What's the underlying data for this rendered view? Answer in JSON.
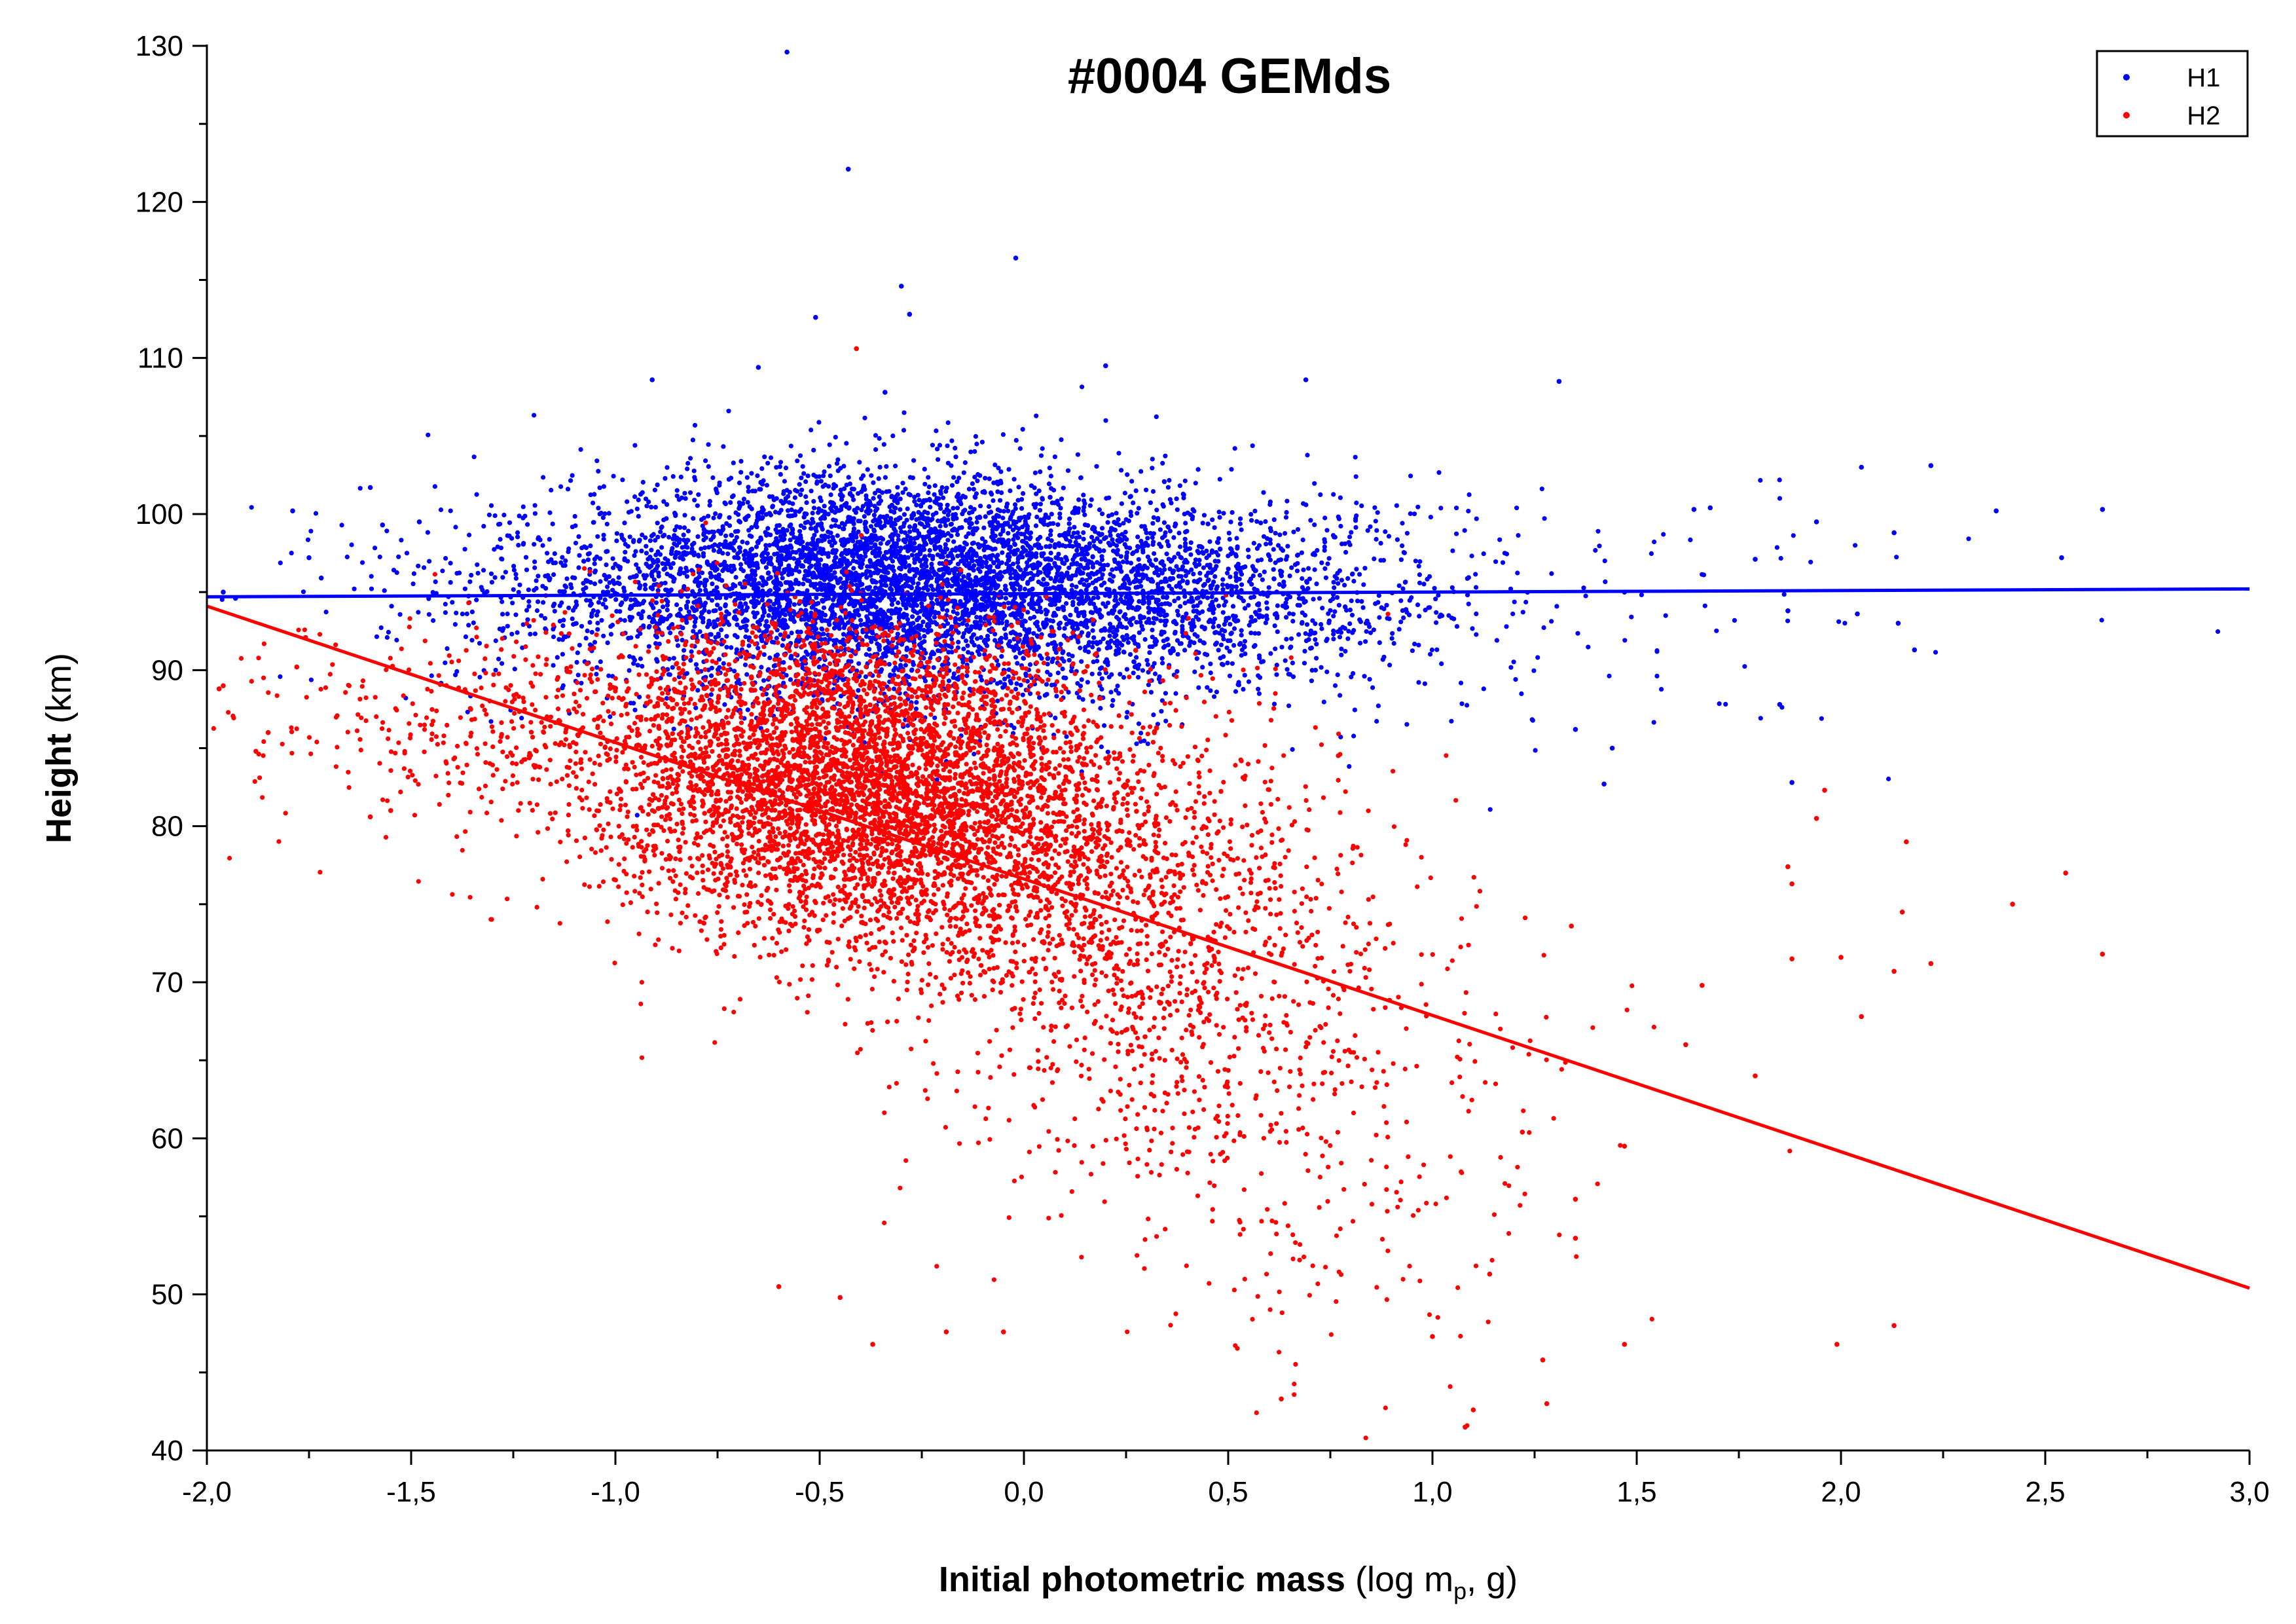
{
  "chart_data": {
    "type": "scatter",
    "title": "#0004 GEMds",
    "xlabel": {
      "bold": "Initial photometric mass",
      "normal_pre": " (log m",
      "sub": "p",
      "normal_post": ", g)"
    },
    "ylabel": {
      "bold": "Height",
      "normal": " (km)"
    },
    "xlim": [
      -2.0,
      3.0
    ],
    "ylim": [
      40,
      130
    ],
    "x_ticks": [
      -2.0,
      -1.5,
      -1.0,
      -0.5,
      0.0,
      0.5,
      1.0,
      1.5,
      2.0,
      2.5,
      3.0
    ],
    "x_tick_labels": [
      "-2,0",
      "-1,5",
      "-1,0",
      "-0,5",
      "0,0",
      "0,5",
      "1,0",
      "1,5",
      "2,0",
      "2,5",
      "3,0"
    ],
    "y_ticks": [
      40,
      50,
      60,
      70,
      80,
      90,
      100,
      110,
      120,
      130
    ],
    "y_tick_labels": [
      "40",
      "50",
      "60",
      "70",
      "80",
      "90",
      "100",
      "110",
      "120",
      "130"
    ],
    "grid": false,
    "legend_position": "top-right",
    "series": [
      {
        "name": "H1",
        "color": "#0000ff",
        "fit_line": {
          "x": [
            -2.0,
            3.0
          ],
          "y": [
            94.7,
            95.2
          ]
        },
        "clusters": [
          {
            "cx": -0.42,
            "cy": 95.8,
            "sx": 0.34,
            "sy": 3.6,
            "n": 3600
          },
          {
            "cx": 0.05,
            "cy": 95.0,
            "sx": 0.38,
            "sy": 3.4,
            "n": 1700
          },
          {
            "cx": 0.45,
            "cy": 94.8,
            "sx": 0.35,
            "sy": 3.2,
            "n": 700
          },
          {
            "cx": -1.05,
            "cy": 95.0,
            "sx": 0.35,
            "sy": 3.0,
            "n": 350
          },
          {
            "cx": 1.2,
            "cy": 94.0,
            "sx": 0.55,
            "sy": 4.5,
            "n": 120
          }
        ],
        "points": [
          [
            -0.58,
            129.6
          ],
          [
            -0.43,
            122.1
          ],
          [
            -0.02,
            116.4
          ],
          [
            -0.3,
            114.6
          ],
          [
            -0.51,
            112.6
          ],
          [
            -0.28,
            112.8
          ],
          [
            -0.91,
            108.6
          ],
          [
            0.69,
            108.6
          ],
          [
            1.31,
            108.5
          ],
          [
            0.2,
            109.5
          ],
          [
            -0.65,
            109.4
          ],
          [
            -0.34,
            107.8
          ],
          [
            2.05,
            103.0
          ],
          [
            2.22,
            103.1
          ],
          [
            2.38,
            100.2
          ],
          [
            2.64,
            100.3
          ],
          [
            2.54,
            97.2
          ],
          [
            1.64,
            100.3
          ],
          [
            1.68,
            100.4
          ],
          [
            1.94,
            99.5
          ],
          [
            1.79,
            97.1
          ],
          [
            1.87,
            93.8
          ],
          [
            2.13,
            98.8
          ],
          [
            2.14,
            93.0
          ],
          [
            2.18,
            91.3
          ],
          [
            1.85,
            87.8
          ],
          [
            1.88,
            82.8
          ],
          [
            1.35,
            86.2
          ],
          [
            1.42,
            82.7
          ],
          [
            1.44,
            85.0
          ],
          [
            -1.96,
            95.0
          ],
          [
            -1.93,
            94.6
          ],
          [
            -1.79,
            100.2
          ],
          [
            -1.6,
            101.7
          ],
          [
            -1.57,
            99.3
          ],
          [
            -1.48,
            99.5
          ],
          [
            -1.72,
            95.9
          ],
          [
            -1.75,
            97.2
          ],
          [
            2.04,
            93.6
          ],
          [
            1.47,
            95.0
          ]
        ]
      },
      {
        "name": "H2",
        "color": "#ff0000",
        "fit_line": {
          "x": [
            -2.0,
            3.0
          ],
          "y": [
            94.1,
            50.4
          ]
        },
        "clusters": [
          {
            "cx": -0.43,
            "cy": 82.5,
            "sx": 0.3,
            "sy": 4.4,
            "n": 3400
          },
          {
            "cx": -0.12,
            "cy": 79.0,
            "sx": 0.32,
            "sy": 5.0,
            "n": 1500
          },
          {
            "cx": 0.3,
            "cy": 72.0,
            "sx": 0.28,
            "sy": 7.0,
            "n": 900
          },
          {
            "cx": -1.15,
            "cy": 86.0,
            "sx": 0.4,
            "sy": 3.5,
            "n": 550
          },
          {
            "cx": 0.7,
            "cy": 62.0,
            "sx": 0.35,
            "sy": 9.0,
            "n": 350
          },
          {
            "cx": -0.4,
            "cy": 88.5,
            "sx": 0.3,
            "sy": 3.0,
            "n": 500
          }
        ],
        "points": [
          [
            -0.41,
            110.6
          ],
          [
            -1.97,
            88.8
          ],
          [
            -1.96,
            89.0
          ],
          [
            -1.85,
            86.0
          ],
          [
            -1.88,
            84.8
          ],
          [
            -1.78,
            90.2
          ],
          [
            -1.6,
            80.6
          ],
          [
            -1.55,
            81.0
          ],
          [
            2.55,
            77.0
          ],
          [
            2.64,
            71.8
          ],
          [
            2.42,
            75.0
          ],
          [
            2.15,
            74.5
          ],
          [
            2.22,
            71.2
          ],
          [
            2.13,
            70.7
          ],
          [
            2.0,
            71.6
          ],
          [
            1.88,
            71.5
          ],
          [
            2.05,
            67.8
          ],
          [
            1.94,
            80.5
          ],
          [
            1.96,
            82.3
          ],
          [
            1.87,
            77.4
          ],
          [
            1.88,
            76.3
          ],
          [
            1.79,
            64.0
          ],
          [
            1.66,
            69.8
          ],
          [
            1.62,
            66.0
          ],
          [
            1.47,
            59.5
          ],
          [
            1.47,
            46.8
          ],
          [
            1.99,
            46.8
          ],
          [
            2.13,
            48.0
          ],
          [
            2.16,
            79.0
          ],
          [
            1.34,
            73.6
          ],
          [
            1.28,
            43.0
          ],
          [
            1.27,
            45.8
          ],
          [
            1.08,
            41.5
          ],
          [
            1.1,
            42.6
          ],
          [
            0.63,
            43.3
          ],
          [
            -0.6,
            50.5
          ],
          [
            -0.45,
            49.8
          ],
          [
            -0.37,
            46.8
          ],
          [
            -0.19,
            47.6
          ],
          [
            -0.05,
            47.6
          ],
          [
            1.0,
            47.3
          ],
          [
            1.14,
            51.3
          ],
          [
            1.35,
            56.1
          ],
          [
            1.22,
            60.4
          ],
          [
            1.35,
            53.6
          ]
        ]
      }
    ]
  }
}
